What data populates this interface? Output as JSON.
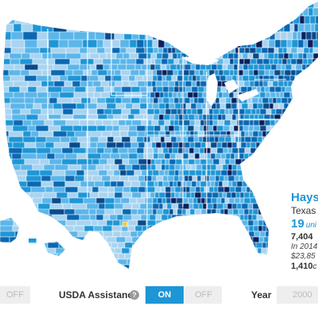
{
  "colors": {
    "lightest": "#a9d4f1",
    "light": "#5bb6ea",
    "mid": "#1e96d6",
    "dark": "#0b68b3",
    "darker": "#0a4a8c",
    "darkest": "#0b1f5e",
    "highlight": "#f2c94c",
    "border": "#ffffff"
  },
  "tooltip": {
    "county": "Hays",
    "state": "Texas",
    "units_value": "19",
    "units_label": "uni",
    "line1_value": "7,404",
    "line1_rest": "",
    "line2": "In 2014",
    "line3": "$23,85",
    "line4_value": "1,410",
    "line4_rest": "c"
  },
  "controls": {
    "left_off_label": "OFF",
    "usda_label": "USDA Assistance",
    "info_icon": "?",
    "on_label": "ON",
    "off_label": "OFF",
    "year_label": "Year",
    "year_value": "2000"
  }
}
